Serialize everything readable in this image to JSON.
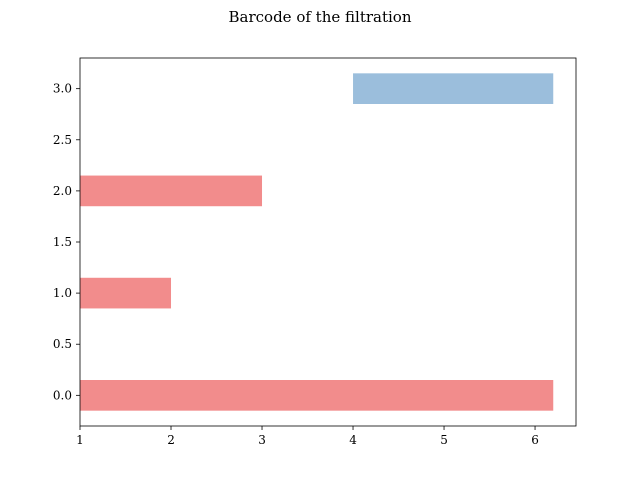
{
  "chart_data": {
    "type": "bar",
    "orientation": "horizontal",
    "title": "Barcode of the filtration",
    "xlabel": "",
    "ylabel": "",
    "xlim": [
      1,
      6.45
    ],
    "ylim": [
      -0.3,
      3.3
    ],
    "xticks": [
      "1",
      "2",
      "3",
      "4",
      "5",
      "6"
    ],
    "yticks": [
      "0.0",
      "0.5",
      "1.0",
      "1.5",
      "2.0",
      "2.5",
      "3.0"
    ],
    "grid": false,
    "bar_height": 0.3,
    "bars": [
      {
        "y": 0,
        "start": 1,
        "end": 6.2,
        "color": "#f28c8c"
      },
      {
        "y": 1,
        "start": 1,
        "end": 2,
        "color": "#f28c8c"
      },
      {
        "y": 2,
        "start": 1,
        "end": 3,
        "color": "#f28c8c"
      },
      {
        "y": 3,
        "start": 4,
        "end": 6.2,
        "color": "#9bbedc"
      }
    ]
  }
}
